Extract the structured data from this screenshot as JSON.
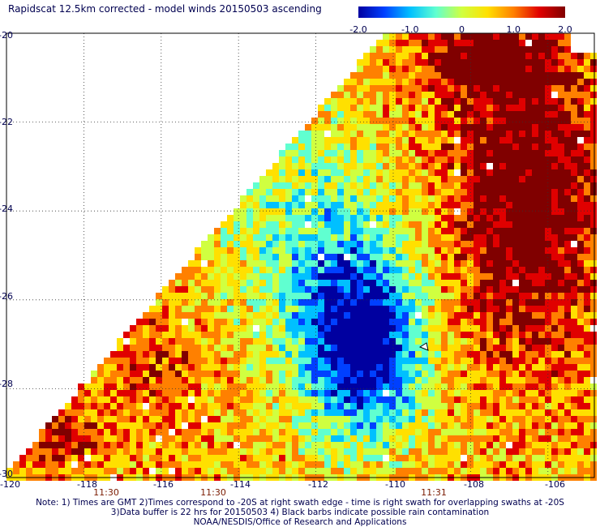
{
  "title": "Rapidscat 12.5km corrected - model winds 20150503 ascending",
  "colorbar": {
    "ticks": [
      "-2.0",
      "-1.0",
      "0",
      "1.0",
      "2.0"
    ],
    "range": [
      -2.0,
      2.0
    ],
    "colors": [
      "#0000a0",
      "#0040ff",
      "#00c0ff",
      "#60ffd0",
      "#d0ff40",
      "#ffe000",
      "#ff8000",
      "#e00000",
      "#800000"
    ]
  },
  "axes": {
    "lon_range": [
      -120,
      -104.8
    ],
    "lat_range": [
      -20,
      -30
    ],
    "lon_ticks": [
      "-120",
      "-118",
      "-116",
      "-114",
      "-112",
      "-110",
      "-108",
      "-106"
    ],
    "lat_ticks": [
      "-20",
      "-22",
      "-24",
      "-26",
      "-28",
      "-30"
    ],
    "grid": "dotted"
  },
  "times": [
    "11:30",
    "11:30",
    "11:31"
  ],
  "notes": [
    "Note: 1) Times are GMT 2)Times correspond to -20S at right swath edge - time is right swath for overlapping swaths at -20S",
    "3)Data buffer is 22 hrs for 20150503 4) Black barbs indicate possible rain contamination",
    "NOAA/NESDIS/Office of Research and Applications"
  ]
}
